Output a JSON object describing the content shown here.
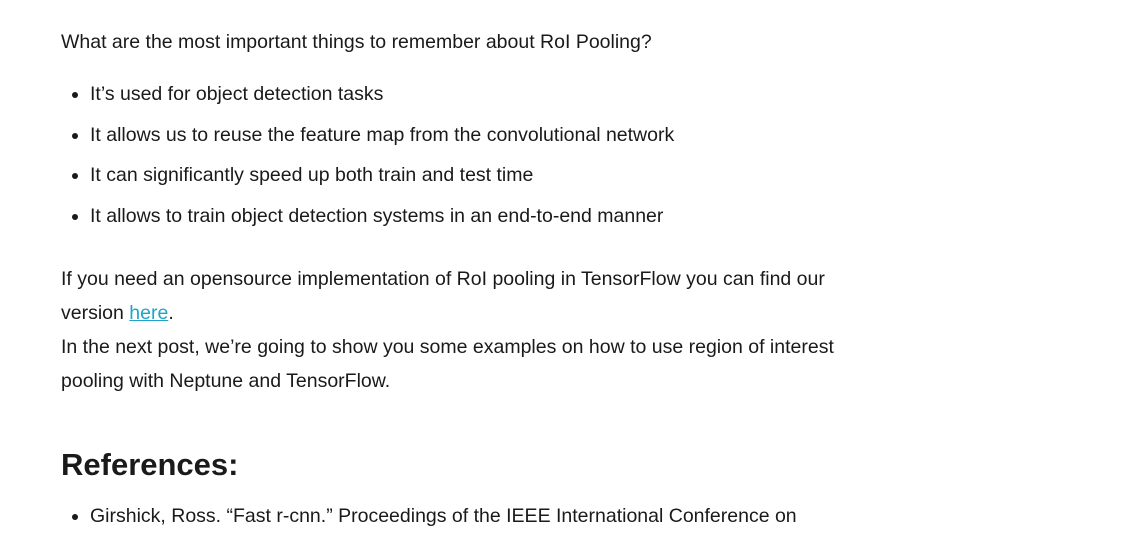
{
  "intro": "What are the most important things to remember about RoI Pooling?",
  "points": [
    "It’s used for object detection tasks",
    "It allows us to reuse the feature map from the convolutional network",
    "It can significantly speed up both train and test time",
    "It allows to train object detection systems in an end-to-end manner"
  ],
  "implementation": {
    "line1": "If you need an opensource implementation of RoI pooling in TensorFlow you can find our",
    "line2_prefix": "version ",
    "link_text": "here",
    "line2_suffix": "."
  },
  "next_post": {
    "line1": "In the next post, we’re going to show you some examples on how to use region of interest",
    "line2": "pooling with Neptune and TensorFlow."
  },
  "references": {
    "heading": "References:",
    "items": [
      "Girshick, Ross. “Fast r-cnn.” Proceedings of the IEEE International Conference on"
    ]
  }
}
